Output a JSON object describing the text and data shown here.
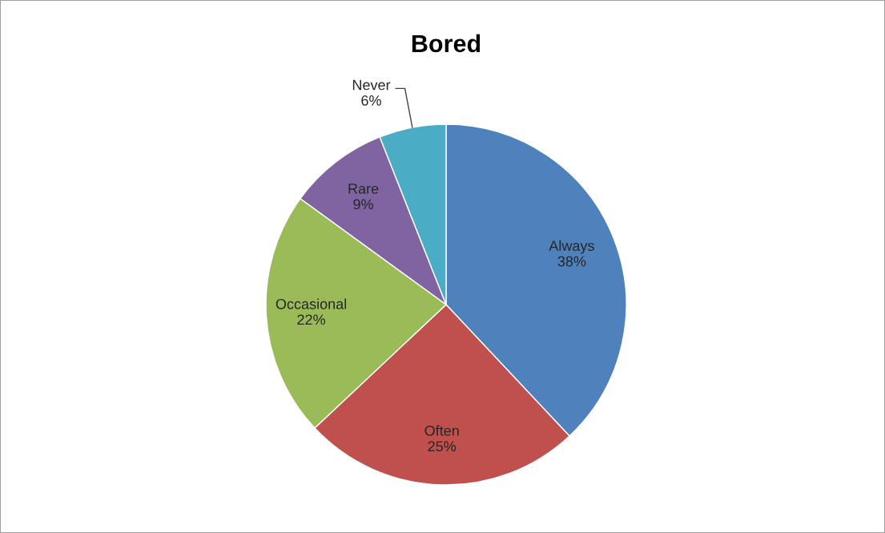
{
  "chart_data": {
    "type": "pie",
    "title": "Bored",
    "categories": [
      "Always",
      "Often",
      "Occasional",
      "Rare",
      "Never"
    ],
    "values": [
      38,
      25,
      22,
      9,
      6
    ],
    "colors": [
      "#4f81bd",
      "#c0504d",
      "#9bbb59",
      "#8064a2",
      "#4bacc6"
    ],
    "value_labels": [
      "38%",
      "25%",
      "22%",
      "9%",
      "6%"
    ]
  }
}
